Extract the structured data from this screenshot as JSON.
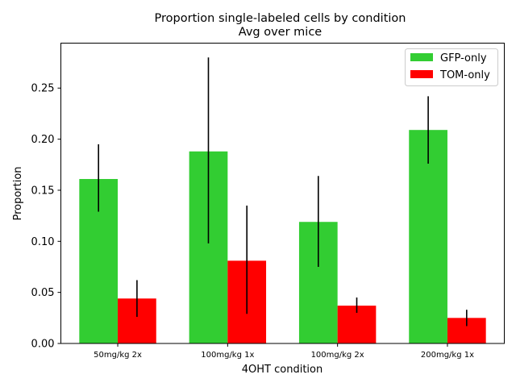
{
  "chart_data": {
    "type": "bar",
    "title": "Proportion single-labeled cells by condition",
    "subtitle": "Avg over mice",
    "xlabel": "4OHT condition",
    "ylabel": "Proportion",
    "categories": [
      "50mg/kg 2x",
      "100mg/kg 1x",
      "100mg/kg 2x",
      "200mg/kg 1x"
    ],
    "ylim": [
      0,
      0.294
    ],
    "yticks": [
      "0.00",
      "0.05",
      "0.10",
      "0.15",
      "0.20",
      "0.25"
    ],
    "grid": false,
    "legend_position": "top-right",
    "series": [
      {
        "name": "GFP-only",
        "color": "#32cd32",
        "values": [
          0.161,
          0.188,
          0.119,
          0.209
        ],
        "error_low": [
          0.129,
          0.098,
          0.075,
          0.176
        ],
        "error_high": [
          0.195,
          0.28,
          0.164,
          0.242
        ]
      },
      {
        "name": "TOM-only",
        "color": "#ff0000",
        "values": [
          0.044,
          0.081,
          0.037,
          0.025
        ],
        "error_low": [
          0.026,
          0.029,
          0.03,
          0.017
        ],
        "error_high": [
          0.062,
          0.135,
          0.045,
          0.033
        ]
      }
    ]
  }
}
